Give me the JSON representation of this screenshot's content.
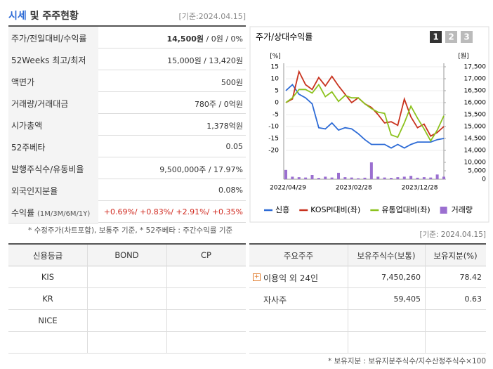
{
  "header": {
    "title_highlight": "시세",
    "title_rest": "및 주주현황",
    "date": "[기준:2024.04.15]"
  },
  "price_table": {
    "rows": [
      {
        "label": "주가/전일대비/수익률",
        "value": "14,500원",
        "value_rest": "/ 0원 / 0%"
      },
      {
        "label": "52Weeks 최고/최저",
        "value": "15,000원 / 13,420원"
      },
      {
        "label": "액면가",
        "value": "500원"
      },
      {
        "label": "거래량/거래대금",
        "value": "780주 / 0억원"
      },
      {
        "label": "시가총액",
        "value": "1,378억원"
      },
      {
        "label": "52주베타",
        "value": "0.05"
      },
      {
        "label": "발행주식수/유동비율",
        "value": "9,500,000주 / 17.97%"
      },
      {
        "label": "외국인지분율",
        "value": "0.08%"
      },
      {
        "label": "수익률",
        "label_sub": "(1M/3M/6M/1Y)",
        "value": "+0.69%/ +0.83%/ +2.91%/ +0.35%"
      }
    ]
  },
  "price_note": "* 수정주가(차트포함), 보통주 기준, * 52주베타 : 주간수익률 기준",
  "chart": {
    "type": "line",
    "title": "주가/상대수익률",
    "buttons": [
      "1",
      "2",
      "3"
    ],
    "y_unit": "[%]",
    "y2_unit": "[원]",
    "categories": [
      "2022/04/29",
      null,
      null,
      null,
      null,
      null,
      null,
      null,
      null,
      null,
      "2023/02/28",
      null,
      null,
      null,
      null,
      null,
      null,
      null,
      null,
      null,
      "2023/12/28",
      null,
      null,
      null,
      null
    ],
    "series": [
      {
        "name": "신흥",
        "color": "#2d6bd6",
        "axis": "y2",
        "values": [
          16500,
          16750,
          16350,
          16200,
          15950,
          14950,
          14900,
          15150,
          14850,
          14950,
          14900,
          14700,
          14450,
          14250,
          14250,
          14250,
          14100,
          14250,
          14100,
          14250,
          14350,
          14350,
          14350,
          14450,
          14500
        ]
      },
      {
        "name": "KOSPI대비(좌)",
        "color": "#c8321e",
        "values": [
          0,
          1.5,
          13,
          7.5,
          5.5,
          10.5,
          7,
          11,
          7,
          3.5,
          0,
          2,
          -0.5,
          -2,
          -5,
          -8.5,
          -8,
          -9.5,
          1.5,
          -6,
          -10.5,
          -9,
          -14,
          -12.5,
          -10
        ]
      },
      {
        "name": "유통업대비(좌)",
        "color": "#8cc21e",
        "values": [
          0,
          2,
          5.5,
          5.5,
          4,
          7.5,
          2.5,
          4.5,
          0.5,
          3,
          2,
          2,
          -0.5,
          -2.5,
          -4,
          -4.5,
          -13.5,
          -14.5,
          -8.5,
          -1.5,
          -6.5,
          -11,
          -16,
          -11.5,
          -5.5
        ]
      },
      {
        "name": "거래량",
        "color": "#9b6fd0",
        "type": "bar",
        "axis": "y3",
        "values": [
          5500,
          1500,
          1200,
          1000,
          2500,
          800,
          1500,
          1000,
          3800,
          1200,
          1000,
          600,
          900,
          10000,
          1500,
          1000,
          800,
          1200,
          1500,
          2000,
          900,
          1200,
          1000,
          2800,
          1500
        ]
      }
    ],
    "ylim": [
      -20,
      15
    ],
    "yticks": [
      15,
      10,
      5,
      0,
      -5,
      -10,
      -15,
      -20
    ],
    "y2lim": [
      14000,
      17500
    ],
    "y2ticks": [
      {
        "value": 17500,
        "label": "17,500"
      },
      {
        "value": 17000,
        "label": "17,000"
      },
      {
        "value": 16500,
        "label": "16,500"
      },
      {
        "value": 16000,
        "label": "16,000"
      },
      {
        "value": 15500,
        "label": "15,500"
      },
      {
        "value": 15000,
        "label": "15,000"
      },
      {
        "value": 14500,
        "label": "14,500"
      },
      {
        "value": 14000,
        "label": "14,000"
      }
    ],
    "y3lim": [
      0,
      10000
    ],
    "y3ticks": [
      {
        "value": 10000,
        "label": "10,000"
      },
      {
        "value": 5000,
        "label": "5,000"
      },
      0
    ],
    "grid": true
  },
  "chart_date": "[기준: 2024.04.15]",
  "credit_table": {
    "header": [
      "신용등급",
      "BOND",
      "CP"
    ],
    "rows": [
      [
        "KIS"
      ],
      [
        "KR"
      ],
      [
        "NICE"
      ]
    ]
  },
  "holders_table": {
    "header": [
      "주요주주",
      "보유주식수(보통)",
      "보유지분(%)"
    ],
    "rows": [
      [
        "이용익 외 24인",
        "7,450,260",
        "78.42"
      ],
      [
        "자사주",
        "59,405",
        "0.63"
      ]
    ]
  },
  "holders_note": "* 보유지분 : 보유지분주식수/지수산정주식수×100"
}
